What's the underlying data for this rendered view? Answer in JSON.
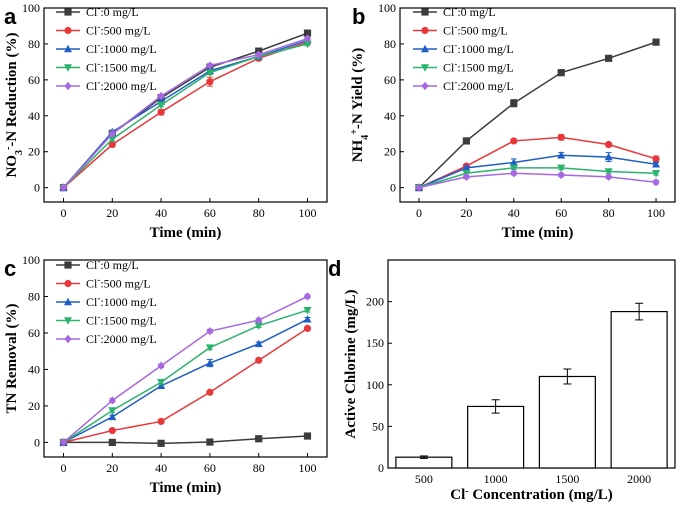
{
  "chart_data": [
    {
      "panel": "a",
      "type": "line",
      "xlabel": "Time (min)",
      "ylabel": "NO3--N Reduction (%)",
      "ylabel_parts": [
        "NO",
        "3",
        "-",
        "-N Reduction (%)"
      ],
      "x": [
        0,
        20,
        40,
        60,
        80,
        100
      ],
      "xlim": [
        -8,
        108
      ],
      "ylim": [
        -8,
        100
      ],
      "xticks": [
        0,
        20,
        40,
        60,
        80,
        100
      ],
      "yticks": [
        0,
        20,
        40,
        60,
        80,
        100
      ],
      "series": [
        {
          "name": "Cl-:0 mg/L",
          "ion": "Cl",
          "charge": "-",
          "conc": ":0 mg/L",
          "color": "#3c3c3c",
          "marker": "square",
          "values": [
            0,
            30,
            50,
            67,
            76,
            86
          ],
          "errors": [
            0,
            0.8,
            1,
            1.2,
            1,
            1
          ]
        },
        {
          "name": "Cl-:500 mg/L",
          "ion": "Cl",
          "charge": "-",
          "conc": ":500 mg/L",
          "color": "#e8383b",
          "marker": "circle",
          "values": [
            0,
            24,
            42,
            59,
            72,
            81
          ],
          "errors": [
            0,
            1,
            1.5,
            2.5,
            1,
            1
          ]
        },
        {
          "name": "Cl-:1000 mg/L",
          "ion": "Cl",
          "charge": "-",
          "conc": ":1000 mg/L",
          "color": "#1f5fc4",
          "marker": "triangle-up",
          "values": [
            0,
            31,
            48,
            65,
            73,
            82
          ],
          "errors": [
            0,
            1,
            1,
            1,
            1,
            1
          ]
        },
        {
          "name": "Cl-:1500 mg/L",
          "ion": "Cl",
          "charge": "-",
          "conc": ":1500 mg/L",
          "color": "#2bb36d",
          "marker": "triangle-down",
          "values": [
            0,
            27,
            46,
            64,
            73,
            80
          ],
          "errors": [
            0,
            1,
            1,
            1,
            1,
            1
          ]
        },
        {
          "name": "Cl-:2000 mg/L",
          "ion": "Cl",
          "charge": "-",
          "conc": ":2000 mg/L",
          "color": "#a668e0",
          "marker": "diamond",
          "values": [
            0,
            30,
            51,
            68,
            74,
            83
          ],
          "errors": [
            0,
            1,
            1,
            1,
            1,
            1
          ]
        }
      ]
    },
    {
      "panel": "b",
      "type": "line",
      "xlabel": "Time (min)",
      "ylabel": "NH4+-N Yield (%)",
      "ylabel_parts": [
        "NH",
        "4",
        "+",
        "-N Yield (%)"
      ],
      "x": [
        0,
        20,
        40,
        60,
        80,
        100
      ],
      "xlim": [
        -8,
        108
      ],
      "ylim": [
        -8,
        100
      ],
      "xticks": [
        0,
        20,
        40,
        60,
        80,
        100
      ],
      "yticks": [
        0,
        20,
        40,
        60,
        80,
        100
      ],
      "series": [
        {
          "name": "Cl-:0 mg/L",
          "ion": "Cl",
          "charge": "-",
          "conc": ":0 mg/L",
          "color": "#3c3c3c",
          "marker": "square",
          "values": [
            0,
            26,
            47,
            64,
            72,
            81
          ],
          "errors": [
            0,
            0.8,
            2,
            1,
            0.8,
            1.5
          ]
        },
        {
          "name": "Cl-:500 mg/L",
          "ion": "Cl",
          "charge": "-",
          "conc": ":500 mg/L",
          "color": "#e8383b",
          "marker": "circle",
          "values": [
            0,
            12,
            26,
            28,
            24,
            16
          ],
          "errors": [
            0,
            1,
            1,
            1.5,
            1,
            1.5
          ]
        },
        {
          "name": "Cl-:1000 mg/L",
          "ion": "Cl",
          "charge": "-",
          "conc": ":1000 mg/L",
          "color": "#1f5fc4",
          "marker": "triangle-up",
          "values": [
            0,
            11,
            14,
            18,
            17,
            13
          ],
          "errors": [
            0,
            1,
            2,
            1.5,
            2.5,
            1
          ]
        },
        {
          "name": "Cl-:1500 mg/L",
          "ion": "Cl",
          "charge": "-",
          "conc": ":1500 mg/L",
          "color": "#2bb36d",
          "marker": "triangle-down",
          "values": [
            0,
            8,
            11,
            11,
            9,
            8
          ],
          "errors": [
            0,
            1,
            1,
            1,
            1,
            1
          ]
        },
        {
          "name": "Cl-:2000 mg/L",
          "ion": "Cl",
          "charge": "-",
          "conc": ":2000 mg/L",
          "color": "#a668e0",
          "marker": "diamond",
          "values": [
            0,
            6,
            8,
            7,
            6,
            3
          ],
          "errors": [
            0,
            1,
            1,
            1,
            1,
            1
          ]
        }
      ]
    },
    {
      "panel": "c",
      "type": "line",
      "xlabel": "Time (min)",
      "ylabel": "TN Removal (%)",
      "x": [
        0,
        20,
        40,
        60,
        80,
        100
      ],
      "xlim": [
        -8,
        108
      ],
      "ylim": [
        -8,
        100
      ],
      "xticks": [
        0,
        20,
        40,
        60,
        80,
        100
      ],
      "yticks": [
        0,
        20,
        40,
        60,
        80,
        100
      ],
      "series": [
        {
          "name": "Cl-:0 mg/L",
          "ion": "Cl",
          "charge": "-",
          "conc": ":0 mg/L",
          "color": "#3c3c3c",
          "marker": "square",
          "values": [
            0,
            0,
            -0.5,
            0.2,
            2,
            3.5
          ],
          "errors": [
            0,
            0.3,
            0.3,
            0.3,
            0.5,
            0.5
          ]
        },
        {
          "name": "Cl-:500 mg/L",
          "ion": "Cl",
          "charge": "-",
          "conc": ":500 mg/L",
          "color": "#e8383b",
          "marker": "circle",
          "values": [
            0,
            6.5,
            11.5,
            27.5,
            45,
            62.5
          ],
          "errors": [
            0,
            0.5,
            0.5,
            0.8,
            0.8,
            1
          ]
        },
        {
          "name": "Cl-:1000 mg/L",
          "ion": "Cl",
          "charge": "-",
          "conc": ":1000 mg/L",
          "color": "#1f5fc4",
          "marker": "triangle-up",
          "values": [
            0,
            14,
            31,
            43.5,
            54,
            67.5
          ],
          "errors": [
            0,
            1,
            1,
            2,
            1,
            1
          ]
        },
        {
          "name": "Cl-:1500 mg/L",
          "ion": "Cl",
          "charge": "-",
          "conc": ":1500 mg/L",
          "color": "#2bb36d",
          "marker": "triangle-down",
          "values": [
            0,
            17.5,
            33,
            52,
            64,
            72.5
          ],
          "errors": [
            0,
            1,
            1,
            1,
            1,
            1
          ]
        },
        {
          "name": "Cl-:2000 mg/L",
          "ion": "Cl",
          "charge": "-",
          "conc": ":2000 mg/L",
          "color": "#a668e0",
          "marker": "diamond",
          "values": [
            0,
            23,
            42,
            61,
            67,
            80
          ],
          "errors": [
            0,
            1,
            1,
            1,
            1,
            1
          ]
        }
      ]
    },
    {
      "panel": "d",
      "type": "bar",
      "xlabel": "Cl- Concentration (mg/L)",
      "xlabel_parts": [
        "Cl",
        "-",
        " Concentration (mg/L)"
      ],
      "ylabel": "Active Chlorine  (mg/L)",
      "categories": [
        "500",
        "1000",
        "1500",
        "2000"
      ],
      "values": [
        13,
        74,
        110,
        188
      ],
      "errors": [
        1.5,
        8,
        9,
        10
      ],
      "ylim": [
        0,
        250
      ],
      "yticks": [
        0,
        50,
        100,
        150,
        200
      ],
      "bar_fill": "#ffffff",
      "bar_edge": "#000000"
    }
  ]
}
